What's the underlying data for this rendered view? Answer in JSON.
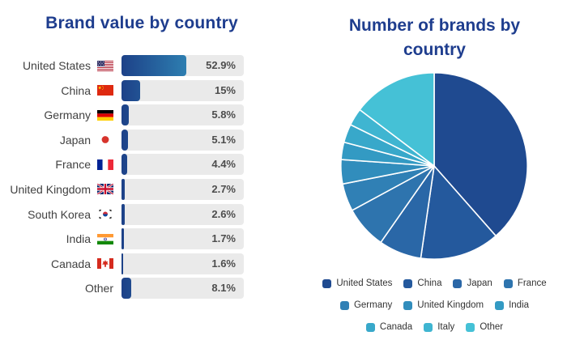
{
  "page": {
    "background": "#ffffff",
    "title_color": "#1e3d8e"
  },
  "chart_data": [
    {
      "type": "bar",
      "title": "Brand value by country",
      "orientation": "horizontal",
      "categories": [
        "United States",
        "China",
        "Germany",
        "Japan",
        "France",
        "United Kingdom",
        "South Korea",
        "India",
        "Canada",
        "Other"
      ],
      "values": [
        52.9,
        15,
        5.8,
        5.1,
        4.4,
        2.7,
        2.6,
        1.7,
        1.6,
        8.1
      ],
      "value_labels": [
        "52.9%",
        "15%",
        "5.8%",
        "5.1%",
        "4.4%",
        "2.7%",
        "2.6%",
        "1.7%",
        "1.6%",
        "8.1%"
      ],
      "flags": [
        "us",
        "cn",
        "de",
        "jp",
        "fr",
        "gb",
        "kr",
        "in",
        "ca",
        null
      ],
      "unit": "%",
      "xlim": [
        0,
        100
      ],
      "grid": false,
      "track_color": "#eaeaea",
      "bar_gradient": [
        "#1d4188",
        "#3cb4d4"
      ],
      "label_color": "#414141",
      "value_color": "#4d4d4d"
    },
    {
      "type": "pie",
      "title": "Number of brands by country",
      "labels": [
        "United States",
        "China",
        "Japan",
        "France",
        "Germany",
        "United Kingdom",
        "India",
        "Canada",
        "Italy",
        "Other"
      ],
      "values": [
        38.5,
        13.8,
        7.4,
        7.4,
        4.8,
        4.2,
        3.0,
        3.2,
        3.0,
        14.7
      ],
      "unit": "%",
      "colors": [
        "#1f4a90",
        "#24599d",
        "#2a67a7",
        "#2e74ae",
        "#3080b5",
        "#318dbc",
        "#339ac3",
        "#38a8ca",
        "#3fb5d1",
        "#45c1d6"
      ],
      "start_angle_deg": 0,
      "direction": "clockwise",
      "separator_color": "#ffffff",
      "legend_position": "bottom",
      "legend_rows": [
        4,
        3,
        3
      ]
    }
  ]
}
